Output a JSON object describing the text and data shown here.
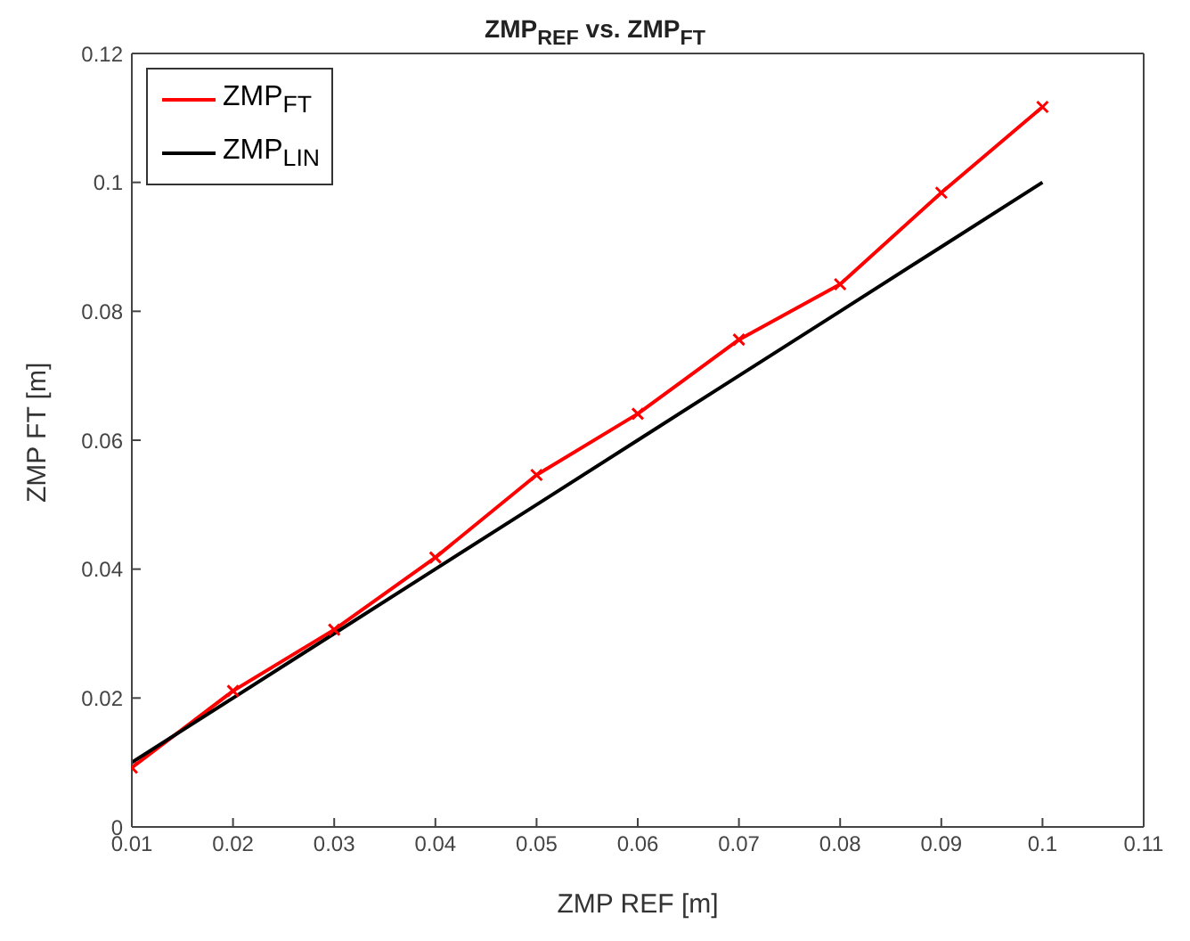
{
  "chart_data": {
    "type": "line",
    "title": "ZMP$_{REF}$ vs. ZMP$_{FT}$",
    "xlabel": "ZMP REF [m]",
    "ylabel": "ZMP FT [m]",
    "x": [
      0.01,
      0.02,
      0.03,
      0.04,
      0.05,
      0.06,
      0.07,
      0.08,
      0.09,
      0.1
    ],
    "series": [
      {
        "name": "ZMP$_{FT}$",
        "color": "#ff0000",
        "marker": "cross",
        "values": [
          0.0092,
          0.0211,
          0.0306,
          0.0418,
          0.0546,
          0.0641,
          0.0756,
          0.0842,
          0.0984,
          0.1117
        ]
      },
      {
        "name": "ZMP$_{LIN}$",
        "color": "#000000",
        "marker": "none",
        "values": [
          0.01,
          0.02,
          0.03,
          0.04,
          0.05,
          0.06,
          0.07,
          0.08,
          0.09,
          0.1
        ]
      }
    ],
    "xlim": [
      0.01,
      0.11
    ],
    "xticks": [
      0.01,
      0.02,
      0.03,
      0.04,
      0.05,
      0.06,
      0.07,
      0.08,
      0.09,
      0.1,
      0.11
    ],
    "ylim": [
      0,
      0.12
    ],
    "yticks": [
      0,
      0.02,
      0.04,
      0.06,
      0.08,
      0.1,
      0.12
    ],
    "grid": false,
    "legend": "top left",
    "line_style": "solid"
  }
}
